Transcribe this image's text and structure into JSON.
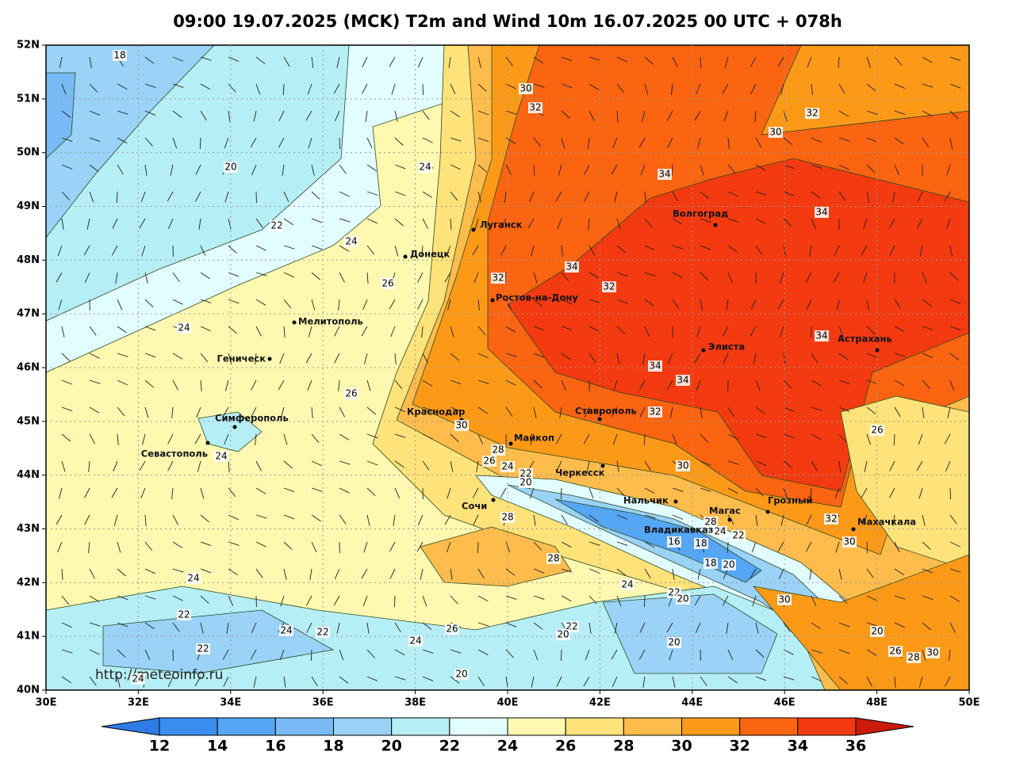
{
  "header": {
    "title": "09:00 19.07.2025 (MCK) T2m and Wind 10m 16.07.2025 00 UTC + 078h"
  },
  "map": {
    "lat_labels": [
      "52N",
      "51N",
      "50N",
      "49N",
      "48N",
      "47N",
      "46N",
      "45N",
      "44N",
      "43N",
      "42N",
      "41N",
      "40N"
    ],
    "lon_labels": [
      "30E",
      "32E",
      "34E",
      "36E",
      "38E",
      "40E",
      "42E",
      "44E",
      "46E",
      "48E",
      "50E"
    ],
    "cities": [
      "Луганск",
      "Донецк",
      "Ростов-на-Дону",
      "Мелитополь",
      "Геническ",
      "Симферополь",
      "Севастополь",
      "Краснодар",
      "Майкоп",
      "Черкесск",
      "Сочи",
      "Нальчик",
      "Владикавказ",
      "Магас",
      "Грозный",
      "Махачкала",
      "Ставрополь",
      "Волгоград",
      "Элиста",
      "Астрахань"
    ],
    "contour_labels": [
      18,
      30,
      32,
      20,
      24,
      34,
      32,
      30,
      22,
      24,
      34,
      34,
      32,
      32,
      26,
      24,
      34,
      34,
      34,
      26,
      32,
      30,
      26,
      24,
      28,
      26,
      24,
      22,
      20,
      30,
      28,
      24,
      22,
      28,
      32,
      30,
      16,
      18,
      28,
      18,
      20,
      24,
      24,
      22,
      20,
      30,
      22,
      24,
      22,
      26,
      22,
      20,
      24,
      20,
      20,
      22,
      26,
      28,
      30,
      24,
      20
    ],
    "watermark": "http://meteoinfo.ru"
  },
  "legend": {
    "levels": [
      12,
      14,
      16,
      18,
      20,
      22,
      24,
      26,
      28,
      30,
      32,
      34,
      36
    ],
    "colors": [
      "#2f7be6",
      "#3a8ef0",
      "#55a6f5",
      "#78baf6",
      "#9ad2f8",
      "#b6eef6",
      "#e2fdff",
      "#fff8b0",
      "#fee27a",
      "#fdbc4c",
      "#fc9a18",
      "#fb6410",
      "#f43a10",
      "#cc1a0a"
    ]
  }
}
